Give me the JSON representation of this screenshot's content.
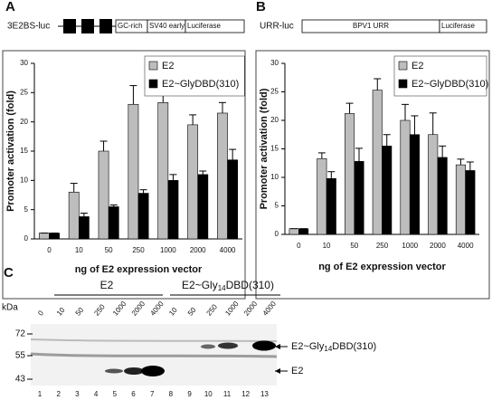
{
  "panel_labels": [
    "A",
    "B",
    "C"
  ],
  "constructs": [
    {
      "name": "3E2BS-luc",
      "parts": [
        "GC-rich",
        "SV40 early",
        "Luciferase"
      ]
    },
    {
      "name": "URR-luc",
      "parts": [
        "BPV1 URR",
        "Luciferase"
      ]
    }
  ],
  "chart_data": [
    {
      "type": "bar",
      "y_label": "Promoter activation (fold)",
      "x_label": "ng of E2 expression vector",
      "categories": [
        "0",
        "10",
        "50",
        "250",
        "1000",
        "2000",
        "4000"
      ],
      "series": [
        {
          "name": "E2",
          "color": "#bdbdbd",
          "values": [
            1,
            8,
            15,
            23,
            23.3,
            19.5,
            21.5
          ],
          "errors": [
            0,
            1.5,
            1.7,
            3.2,
            2,
            1.7,
            1.8
          ]
        },
        {
          "name": "E2~GlyDBD(310)",
          "color": "#000000",
          "values": [
            1,
            3.8,
            5.5,
            7.8,
            10,
            11,
            13.5
          ],
          "errors": [
            0,
            0.6,
            0.3,
            0.6,
            1,
            0.6,
            1.8
          ]
        }
      ],
      "ylim": [
        0,
        30
      ],
      "yticks": [
        0,
        5,
        10,
        15,
        20,
        25,
        30
      ],
      "legend": "upper right"
    },
    {
      "type": "bar",
      "y_label": "Promoter activation (fold)",
      "x_label": "ng of E2 expression vector",
      "categories": [
        "0",
        "10",
        "50",
        "250",
        "1000",
        "2000",
        "4000"
      ],
      "series": [
        {
          "name": "E2",
          "color": "#bdbdbd",
          "values": [
            1,
            13.3,
            21.2,
            25.3,
            20,
            17.5,
            12.2
          ],
          "errors": [
            0,
            1,
            1.8,
            2,
            2.8,
            3.8,
            1
          ]
        },
        {
          "name": "E2~GlyDBD(310)",
          "color": "#000000",
          "values": [
            1,
            9.8,
            12.8,
            15.5,
            17.5,
            13.5,
            11.2
          ],
          "errors": [
            0,
            1.2,
            2.3,
            2,
            3.3,
            2,
            1.5
          ]
        }
      ],
      "ylim": [
        0,
        30
      ],
      "yticks": [
        0,
        5,
        10,
        15,
        20,
        25,
        30
      ],
      "legend": "upper right"
    }
  ],
  "blot": {
    "unit": "kDa",
    "markers": [
      72,
      55,
      43
    ],
    "group_1": "E2",
    "group_2": [
      "E2~Gly",
      "14",
      "DBD(310)"
    ],
    "lanes": [
      "0",
      "10",
      "50",
      "250",
      "1000",
      "2000",
      "4000",
      "10",
      "50",
      "250",
      "1000",
      "2000",
      "4000"
    ],
    "lane_numbers": [
      1,
      2,
      3,
      4,
      5,
      6,
      7,
      8,
      9,
      10,
      11,
      12,
      13
    ],
    "band_1": [
      "E2~Gly",
      "14",
      "DBD(310)"
    ],
    "band_2": "E2"
  }
}
